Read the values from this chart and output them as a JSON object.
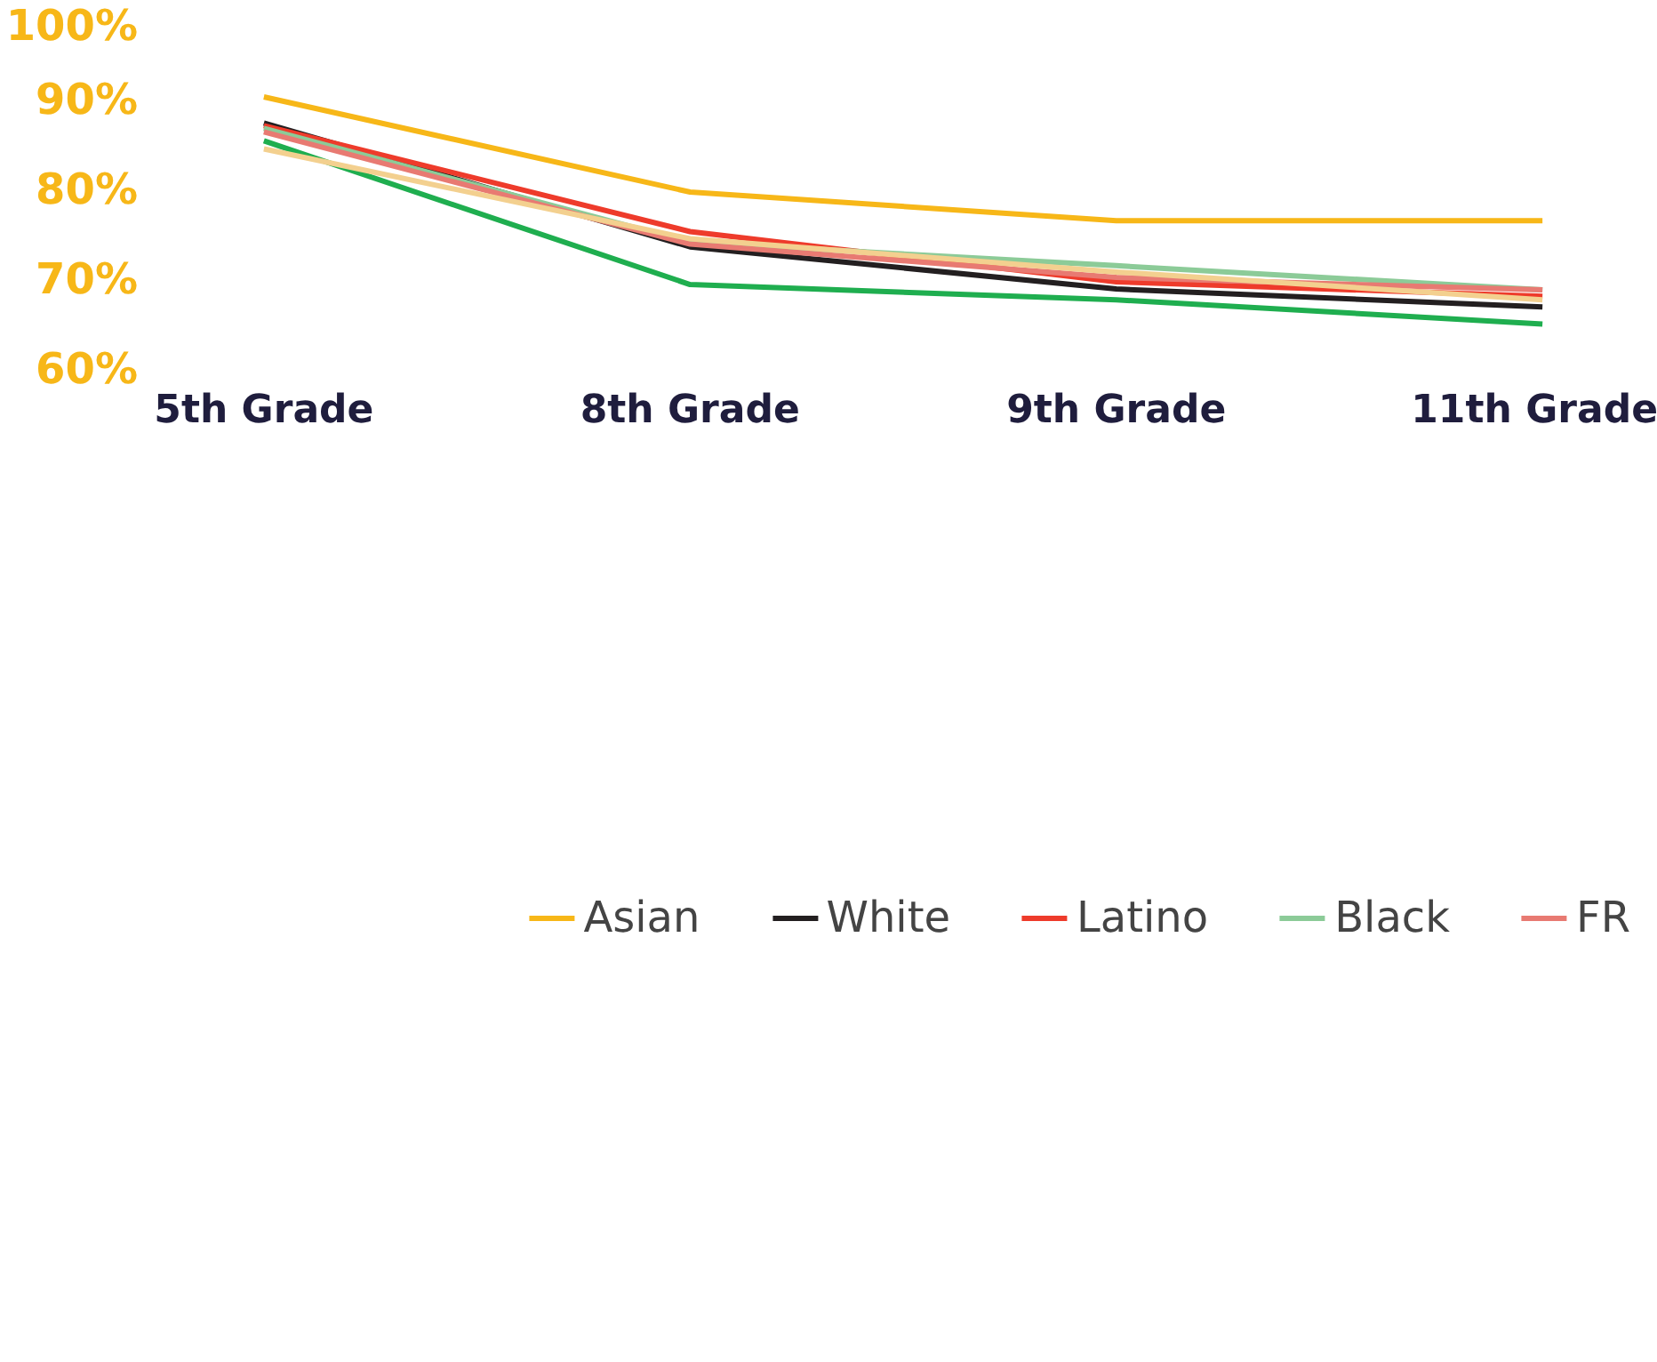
{
  "chart_data": {
    "type": "line",
    "categories": [
      "5th Grade",
      "8th Grade",
      "9th Grade",
      "11th Grade"
    ],
    "series": [
      {
        "name": "Asian",
        "color": "#f7b718",
        "values": [
          90.3,
          79.7,
          76.5,
          76.5
        ]
      },
      {
        "name": "White",
        "color": "#231f20",
        "values": [
          87.4,
          73.6,
          68.9,
          66.9
        ]
      },
      {
        "name": "Latino",
        "color": "#ee3b2b",
        "values": [
          87.1,
          75.3,
          69.7,
          68.1
        ]
      },
      {
        "name": "Black",
        "color": "#8ccb98",
        "values": [
          86.8,
          74.1,
          71.5,
          68.8
        ]
      },
      {
        "name": "FR",
        "color": "#e87a72",
        "values": [
          86.4,
          73.9,
          70.2,
          68.8
        ]
      },
      {
        "color": "#1fae4f",
        "values": [
          85.4,
          69.4,
          67.7,
          65.0
        ]
      },
      {
        "color": "#f3d08f",
        "values": [
          84.5,
          74.5,
          70.8,
          67.7
        ]
      }
    ],
    "ylim": [
      60,
      100
    ],
    "yticks": [
      {
        "value": 60,
        "label": "60%"
      },
      {
        "value": 70,
        "label": "70%"
      },
      {
        "value": 80,
        "label": "80%"
      },
      {
        "value": 90,
        "label": "90%"
      },
      {
        "value": 100,
        "label": "100%"
      }
    ],
    "grid": false,
    "legend": "bottom",
    "marker": "none",
    "line_style": "solid"
  }
}
